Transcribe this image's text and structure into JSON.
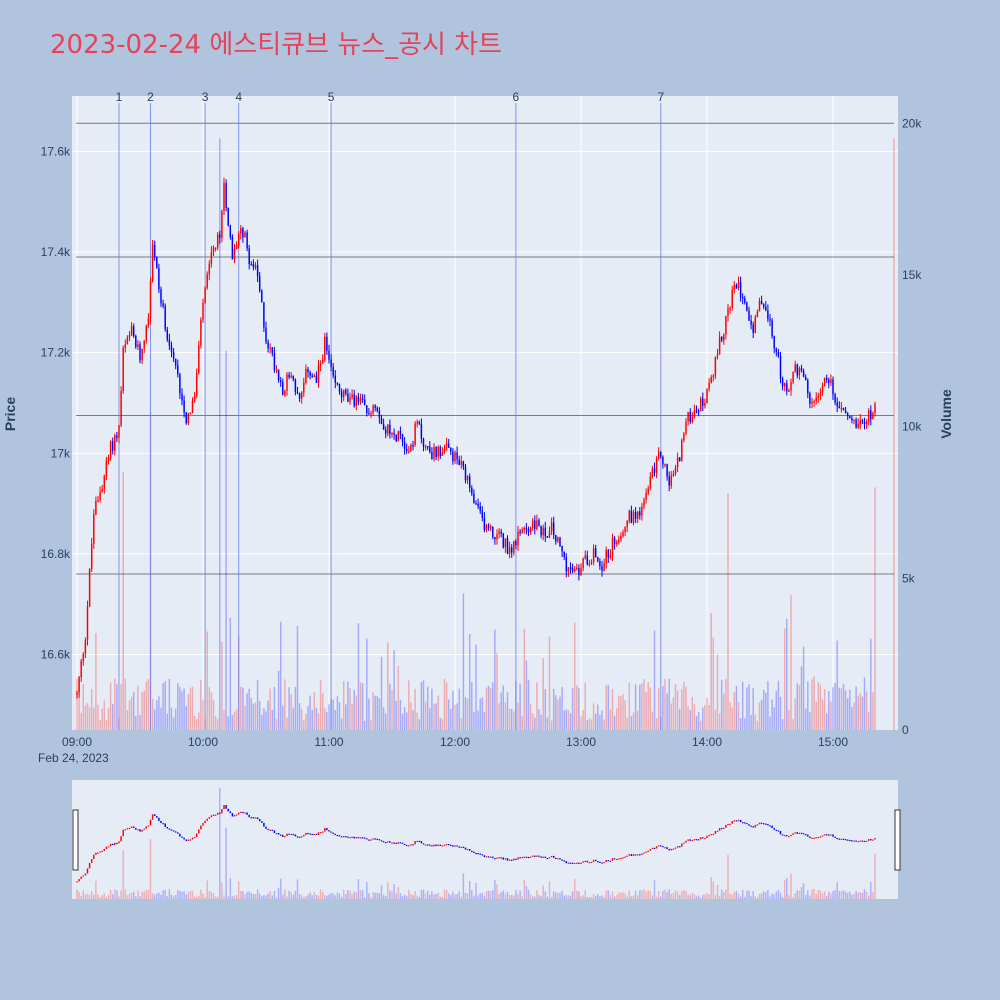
{
  "title": "2023-02-24 에스티큐브 뉴스_공시 차트",
  "colors": {
    "up": "#ff0000",
    "down": "#0000ff",
    "background": "#b0c4de",
    "plot_bg": "#e5ecf6",
    "title": "#e8425a"
  },
  "chart_data": {
    "type": "candlestick",
    "xlabel_date": "Feb 24, 2023",
    "ylabel": "Price",
    "y2label": "Volume",
    "x_ticks": [
      "09:00",
      "10:00",
      "11:00",
      "12:00",
      "13:00",
      "14:00",
      "15:00"
    ],
    "y_ticks": [
      "16.6k",
      "16.8k",
      "17k",
      "17.2k",
      "17.4k",
      "17.6k"
    ],
    "y2_ticks": [
      "0",
      "5k",
      "10k",
      "15k",
      "20k"
    ],
    "ylim": [
      16450,
      17710
    ],
    "y2lim": [
      0,
      20900
    ],
    "xlim": [
      "09:00",
      "15:30"
    ],
    "price_path": [
      {
        "t": "09:00",
        "p": 16520
      },
      {
        "t": "09:04",
        "p": 16640
      },
      {
        "t": "09:08",
        "p": 16880
      },
      {
        "t": "09:12",
        "p": 16940
      },
      {
        "t": "09:16",
        "p": 17010
      },
      {
        "t": "09:20",
        "p": 17050
      },
      {
        "t": "09:22",
        "p": 17200
      },
      {
        "t": "09:26",
        "p": 17240
      },
      {
        "t": "09:30",
        "p": 17190
      },
      {
        "t": "09:34",
        "p": 17280
      },
      {
        "t": "09:36",
        "p": 17420
      },
      {
        "t": "09:40",
        "p": 17300
      },
      {
        "t": "09:44",
        "p": 17220
      },
      {
        "t": "09:48",
        "p": 17150
      },
      {
        "t": "09:52",
        "p": 17070
      },
      {
        "t": "09:56",
        "p": 17110
      },
      {
        "t": "10:00",
        "p": 17300
      },
      {
        "t": "10:04",
        "p": 17390
      },
      {
        "t": "10:08",
        "p": 17430
      },
      {
        "t": "10:10",
        "p": 17540
      },
      {
        "t": "10:14",
        "p": 17380
      },
      {
        "t": "10:18",
        "p": 17460
      },
      {
        "t": "10:22",
        "p": 17390
      },
      {
        "t": "10:26",
        "p": 17350
      },
      {
        "t": "10:30",
        "p": 17230
      },
      {
        "t": "10:34",
        "p": 17180
      },
      {
        "t": "10:38",
        "p": 17130
      },
      {
        "t": "10:42",
        "p": 17160
      },
      {
        "t": "10:46",
        "p": 17100
      },
      {
        "t": "10:50",
        "p": 17170
      },
      {
        "t": "10:54",
        "p": 17140
      },
      {
        "t": "10:58",
        "p": 17220
      },
      {
        "t": "11:02",
        "p": 17140
      },
      {
        "t": "11:06",
        "p": 17120
      },
      {
        "t": "11:10",
        "p": 17100
      },
      {
        "t": "11:14",
        "p": 17110
      },
      {
        "t": "11:18",
        "p": 17080
      },
      {
        "t": "11:22",
        "p": 17100
      },
      {
        "t": "11:26",
        "p": 17060
      },
      {
        "t": "11:30",
        "p": 17030
      },
      {
        "t": "11:34",
        "p": 17040
      },
      {
        "t": "11:38",
        "p": 17000
      },
      {
        "t": "11:42",
        "p": 17060
      },
      {
        "t": "11:46",
        "p": 17010
      },
      {
        "t": "11:50",
        "p": 17000
      },
      {
        "t": "11:54",
        "p": 17010
      },
      {
        "t": "11:58",
        "p": 17000
      },
      {
        "t": "12:02",
        "p": 16980
      },
      {
        "t": "12:06",
        "p": 16940
      },
      {
        "t": "12:10",
        "p": 16890
      },
      {
        "t": "12:14",
        "p": 16860
      },
      {
        "t": "12:18",
        "p": 16840
      },
      {
        "t": "12:22",
        "p": 16830
      },
      {
        "t": "12:26",
        "p": 16810
      },
      {
        "t": "12:30",
        "p": 16830
      },
      {
        "t": "12:34",
        "p": 16850
      },
      {
        "t": "12:38",
        "p": 16860
      },
      {
        "t": "12:42",
        "p": 16840
      },
      {
        "t": "12:46",
        "p": 16850
      },
      {
        "t": "12:50",
        "p": 16810
      },
      {
        "t": "12:54",
        "p": 16770
      },
      {
        "t": "12:58",
        "p": 16760
      },
      {
        "t": "13:02",
        "p": 16790
      },
      {
        "t": "13:06",
        "p": 16800
      },
      {
        "t": "13:10",
        "p": 16780
      },
      {
        "t": "13:14",
        "p": 16810
      },
      {
        "t": "13:18",
        "p": 16840
      },
      {
        "t": "13:22",
        "p": 16870
      },
      {
        "t": "13:26",
        "p": 16880
      },
      {
        "t": "13:30",
        "p": 16900
      },
      {
        "t": "13:34",
        "p": 16960
      },
      {
        "t": "13:38",
        "p": 17000
      },
      {
        "t": "13:42",
        "p": 16940
      },
      {
        "t": "13:46",
        "p": 16980
      },
      {
        "t": "13:50",
        "p": 17060
      },
      {
        "t": "13:54",
        "p": 17090
      },
      {
        "t": "13:58",
        "p": 17100
      },
      {
        "t": "14:02",
        "p": 17140
      },
      {
        "t": "14:06",
        "p": 17220
      },
      {
        "t": "14:10",
        "p": 17280
      },
      {
        "t": "14:14",
        "p": 17340
      },
      {
        "t": "14:18",
        "p": 17310
      },
      {
        "t": "14:22",
        "p": 17240
      },
      {
        "t": "14:26",
        "p": 17310
      },
      {
        "t": "14:30",
        "p": 17250
      },
      {
        "t": "14:34",
        "p": 17180
      },
      {
        "t": "14:38",
        "p": 17110
      },
      {
        "t": "14:42",
        "p": 17170
      },
      {
        "t": "14:46",
        "p": 17160
      },
      {
        "t": "14:50",
        "p": 17090
      },
      {
        "t": "14:54",
        "p": 17130
      },
      {
        "t": "14:58",
        "p": 17150
      },
      {
        "t": "15:02",
        "p": 17100
      },
      {
        "t": "15:06",
        "p": 17080
      },
      {
        "t": "15:10",
        "p": 17060
      },
      {
        "t": "15:14",
        "p": 17070
      },
      {
        "t": "15:18",
        "p": 17080
      },
      {
        "t": "15:20",
        "p": 17100
      }
    ],
    "news_markers": [
      {
        "label": "1",
        "t": "09:20"
      },
      {
        "label": "2",
        "t": "09:35"
      },
      {
        "label": "3",
        "t": "10:01"
      },
      {
        "label": "4",
        "t": "10:17"
      },
      {
        "label": "5",
        "t": "11:01"
      },
      {
        "label": "6",
        "t": "12:29"
      },
      {
        "label": "7",
        "t": "13:38"
      }
    ],
    "hlines_price": [
      17390,
      17075,
      16760
    ],
    "hlines_volume": [
      20000
    ],
    "volume_peaks": [
      {
        "t": "09:22",
        "v": 8500
      },
      {
        "t": "09:35",
        "v": 10500
      },
      {
        "t": "10:08",
        "v": 19500
      },
      {
        "t": "10:11",
        "v": 12500
      },
      {
        "t": "12:04",
        "v": 4500
      },
      {
        "t": "14:10",
        "v": 7800
      },
      {
        "t": "15:20",
        "v": 8000
      },
      {
        "t": "15:30",
        "v": 19500
      }
    ]
  }
}
